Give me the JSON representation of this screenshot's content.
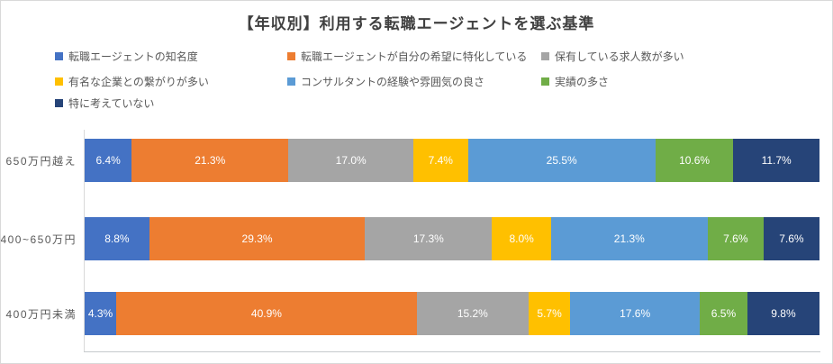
{
  "chart_data": {
    "type": "bar",
    "stacked": true,
    "orientation": "horizontal",
    "title": "【年収別】利用する転職エージェントを選ぶ基準",
    "categories": [
      "650万円越え",
      "400~650万円",
      "400万円未満"
    ],
    "series": [
      {
        "name": "転職エージェントの知名度",
        "color": "#4472C4",
        "values": [
          6.4,
          8.8,
          4.3
        ]
      },
      {
        "name": "転職エージェントが自分の希望に特化している",
        "color": "#ED7D31",
        "values": [
          21.3,
          29.3,
          40.9
        ]
      },
      {
        "name": "保有している求人数が多い",
        "color": "#A5A5A5",
        "values": [
          17.0,
          17.3,
          15.2
        ]
      },
      {
        "name": "有名な企業との繋がりが多い",
        "color": "#FFC000",
        "values": [
          7.4,
          8.0,
          5.7
        ]
      },
      {
        "name": "コンサルタントの経験や雰囲気の良さ",
        "color": "#5B9BD5",
        "values": [
          25.5,
          21.3,
          17.6
        ]
      },
      {
        "name": "実績の多さ",
        "color": "#70AD47",
        "values": [
          10.6,
          7.6,
          6.5
        ]
      },
      {
        "name": "特に考えていない",
        "color": "#264478",
        "values": [
          11.7,
          7.6,
          9.8
        ]
      }
    ],
    "value_format": "one_decimal_percent",
    "xlim": [
      0,
      100
    ],
    "grid": false,
    "legend_position": "top-left",
    "data_label_color": "#ffffff",
    "axis_line_color": "#c6c9cc",
    "text_color": "#595959",
    "title_color": "#404040"
  }
}
